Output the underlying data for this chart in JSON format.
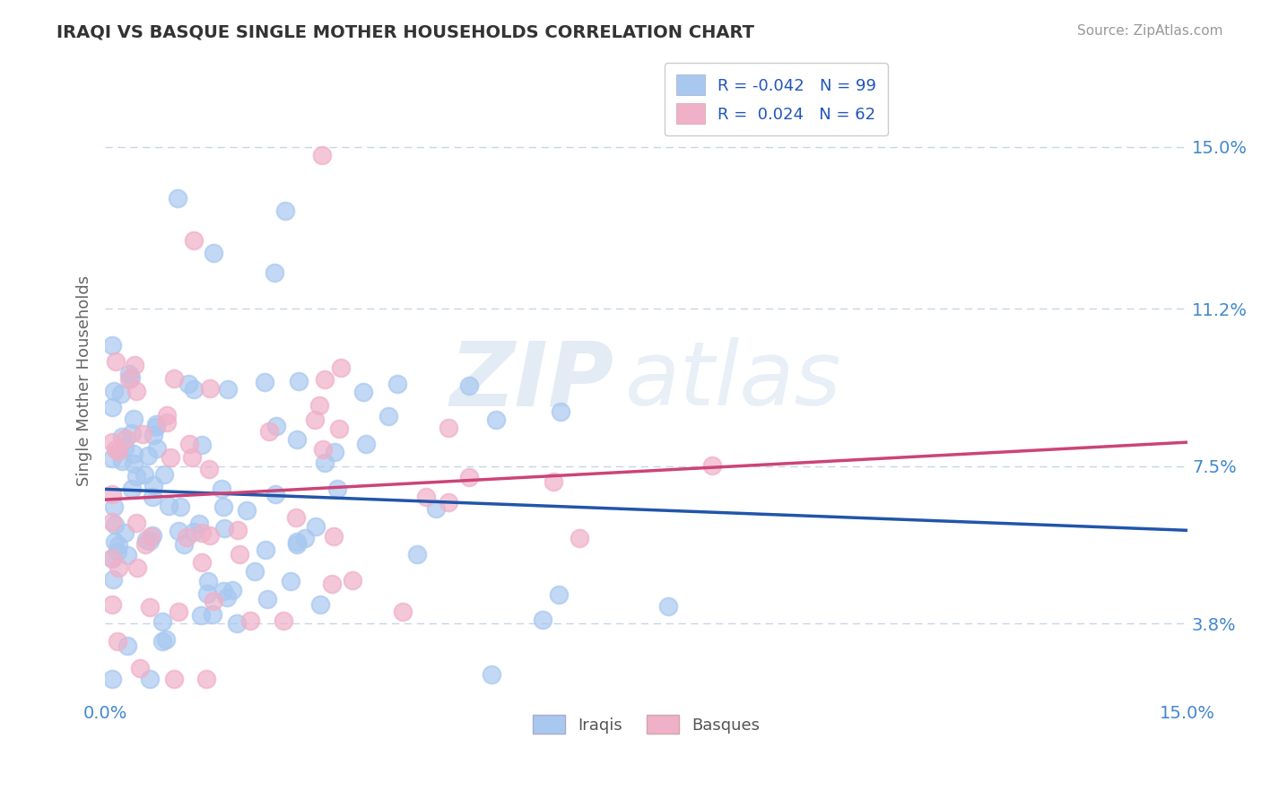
{
  "title": "IRAQI VS BASQUE SINGLE MOTHER HOUSEHOLDS CORRELATION CHART",
  "source": "Source: ZipAtlas.com",
  "ylabel": "Single Mother Households",
  "xlim": [
    0.0,
    0.15
  ],
  "ylim": [
    0.02,
    0.17
  ],
  "yticks": [
    0.038,
    0.075,
    0.112,
    0.15
  ],
  "ytick_labels": [
    "3.8%",
    "7.5%",
    "11.2%",
    "15.0%"
  ],
  "iraqis_color": "#a8c8f0",
  "basques_color": "#f0b0c8",
  "iraqis_line_color": "#2255aa",
  "basques_line_color": "#cc4477",
  "background_color": "#ffffff",
  "grid_color": "#c8d4e8",
  "axis_label_color": "#4488cc",
  "watermark_zip": "ZIP",
  "watermark_atlas": "atlas",
  "legend_label_iraqi": "R = -0.042   N = 99",
  "legend_label_basque": "R =  0.024   N = 62",
  "bottom_label_iraqi": "Iraqis",
  "bottom_label_basque": "Basques"
}
